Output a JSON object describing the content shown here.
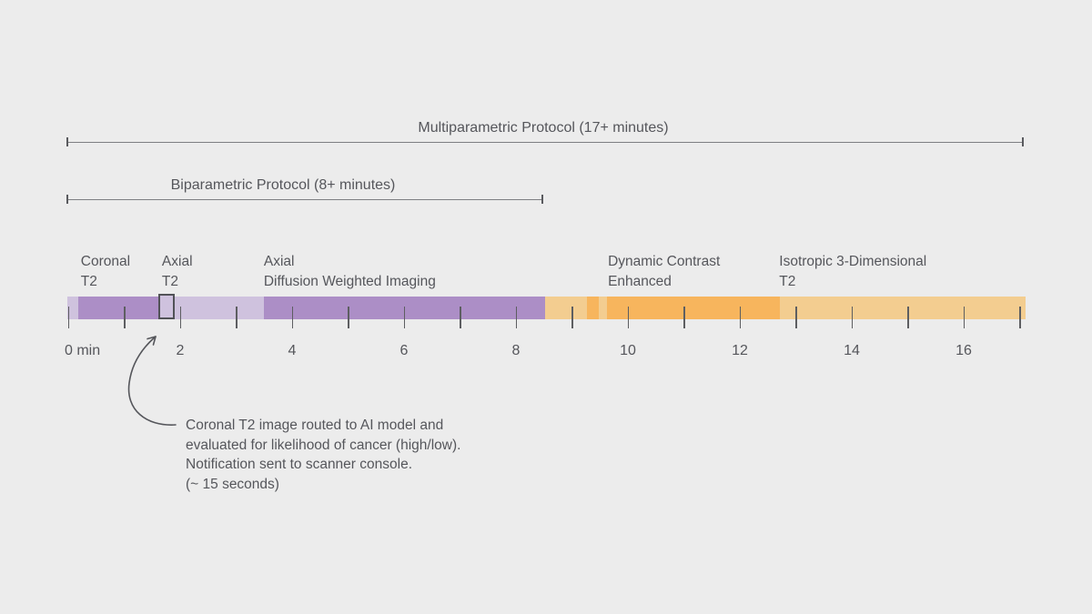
{
  "colors": {
    "background": "#ececec",
    "purple_dark": "#ac8ec6",
    "purple_light": "#cfc2de",
    "orange_dark": "#f7b55d",
    "orange_light": "#f3cd90",
    "text": "#55565b",
    "bracket_line": "#7e7f82",
    "tick": "#5d5e61",
    "highlight_box_border": "#515257"
  },
  "brackets": [
    {
      "id": "multiparametric",
      "label": "Multiparametric Protocol (17+ minutes)",
      "start_min": 0,
      "end_min": 17.11
    },
    {
      "id": "biparametric",
      "label": "Biparametric Protocol (8+ minutes)",
      "start_min": 0,
      "end_min": 8.52
    }
  ],
  "chart_data": {
    "type": "bar",
    "subtype": "timeline",
    "title": "",
    "xlabel": "minutes",
    "x_range": [
      0,
      17.13
    ],
    "axis_ticks_min": [
      0,
      1,
      2,
      3,
      4,
      5,
      6,
      7,
      8,
      9,
      10,
      11,
      12,
      13,
      14,
      15,
      16,
      17
    ],
    "axis_labels": [
      {
        "min": 0,
        "text": "0 min"
      },
      {
        "min": 2,
        "text": "2"
      },
      {
        "min": 4,
        "text": "4"
      },
      {
        "min": 6,
        "text": "6"
      },
      {
        "min": 8,
        "text": "8"
      },
      {
        "min": 10,
        "text": "10"
      },
      {
        "min": 12,
        "text": "12"
      },
      {
        "min": 14,
        "text": "14"
      },
      {
        "min": 16,
        "text": "16"
      }
    ],
    "segments": [
      {
        "name": "lead-in",
        "start": 0.0,
        "end": 0.2,
        "color": "purple_light"
      },
      {
        "name": "Coronal T2",
        "start": 0.2,
        "end": 1.64,
        "color": "purple_dark"
      },
      {
        "name": "Axial T2",
        "start": 1.64,
        "end": 3.51,
        "color": "purple_light"
      },
      {
        "name": "Axial Diffusion Weighted Imaging",
        "start": 3.51,
        "end": 8.54,
        "color": "purple_dark"
      },
      {
        "name": "gap",
        "start": 8.54,
        "end": 9.28,
        "color": "orange_light"
      },
      {
        "name": "pre-contrast stripe",
        "start": 9.28,
        "end": 9.5,
        "color": "orange_dark"
      },
      {
        "name": "gap",
        "start": 9.5,
        "end": 9.64,
        "color": "orange_light"
      },
      {
        "name": "Dynamic Contrast Enhanced",
        "start": 9.64,
        "end": 12.73,
        "color": "orange_dark"
      },
      {
        "name": "Isotropic 3-Dimensional T2",
        "start": 12.73,
        "end": 17.13,
        "color": "orange_light"
      }
    ],
    "segment_labels": [
      {
        "lines": [
          "Coronal",
          "T2"
        ],
        "anchor_min": 0.24
      },
      {
        "lines": [
          "Axial",
          "T2"
        ],
        "anchor_min": 1.69
      },
      {
        "lines": [
          "Axial",
          "Diffusion Weighted Imaging"
        ],
        "anchor_min": 3.51
      },
      {
        "lines": [
          "Dynamic Contrast",
          "Enhanced"
        ],
        "anchor_min": 9.66
      },
      {
        "lines": [
          "Isotropic 3-Dimensional",
          "T2"
        ],
        "anchor_min": 12.72
      }
    ],
    "highlight_box": {
      "start_min": 1.64,
      "end_min": 1.95
    }
  },
  "annotation": {
    "lines": [
      "Coronal T2 image routed to AI model and",
      "evaluated for likelihood of cancer (high/low).",
      "Notification sent to scanner console.",
      "(~ 15 seconds)"
    ]
  }
}
